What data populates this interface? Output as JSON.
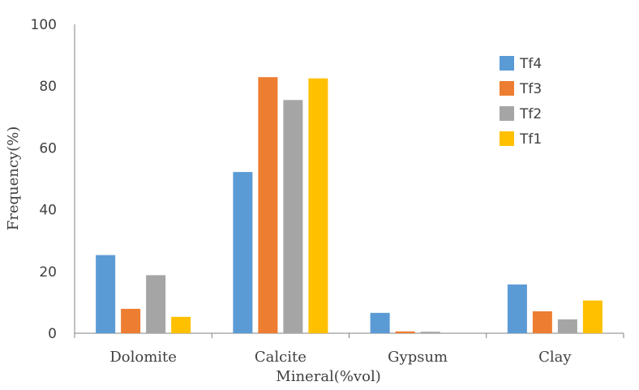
{
  "chart_data": {
    "type": "bar",
    "title": "",
    "xlabel": "Mineral(%vol)",
    "ylabel": "Frequency(%)",
    "ylim": [
      0,
      100
    ],
    "yticks": [
      "0",
      "20",
      "40",
      "60",
      "80",
      "100"
    ],
    "categories": [
      "Dolomite",
      "Calcite",
      "Gypsum",
      "Clay"
    ],
    "legend_position": "top-right",
    "series": [
      {
        "name": "Tf4",
        "color": "#5B9BD5",
        "values": [
          25.3,
          52.2,
          6.6,
          15.8
        ]
      },
      {
        "name": "Tf3",
        "color": "#ED7D31",
        "values": [
          7.9,
          82.9,
          0.6,
          7.1
        ]
      },
      {
        "name": "Tf2",
        "color": "#A5A5A5",
        "values": [
          18.8,
          75.5,
          0.5,
          4.5
        ]
      },
      {
        "name": "Tf1",
        "color": "#FFC000",
        "values": [
          5.3,
          82.5,
          0.0,
          10.6
        ]
      }
    ]
  }
}
